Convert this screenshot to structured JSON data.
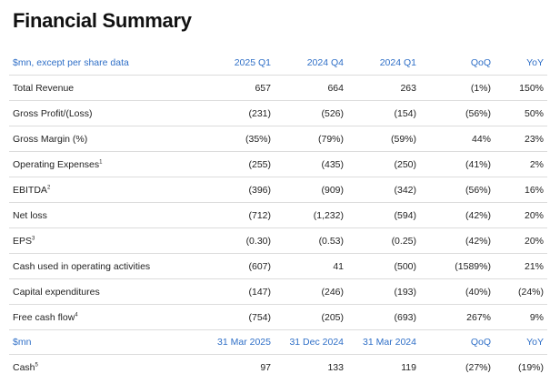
{
  "title": "Financial Summary",
  "table1": {
    "header": [
      "$mn, except per share data",
      "2025 Q1",
      "2024 Q4",
      "2024 Q1",
      "QoQ",
      "YoY"
    ],
    "rows": [
      {
        "label": "Total Revenue",
        "sup": "",
        "cells": [
          "657",
          "664",
          "263",
          "(1%)",
          "150%"
        ]
      },
      {
        "label": "Gross Profit/(Loss)",
        "sup": "",
        "cells": [
          "(231)",
          "(526)",
          "(154)",
          "(56%)",
          "50%"
        ]
      },
      {
        "label": "Gross Margin (%)",
        "sup": "",
        "cells": [
          "(35%)",
          "(79%)",
          "(59%)",
          "44%",
          "23%"
        ]
      },
      {
        "label": "Operating Expenses",
        "sup": "1",
        "cells": [
          "(255)",
          "(435)",
          "(250)",
          "(41%)",
          "2%"
        ]
      },
      {
        "label": "EBITDA",
        "sup": "2",
        "cells": [
          "(396)",
          "(909)",
          "(342)",
          "(56%)",
          "16%"
        ]
      },
      {
        "label": "Net loss",
        "sup": "",
        "cells": [
          "(712)",
          "(1,232)",
          "(594)",
          "(42%)",
          "20%"
        ]
      },
      {
        "label": "EPS",
        "sup": "3",
        "cells": [
          "(0.30)",
          "(0.53)",
          "(0.25)",
          "(42%)",
          "20%"
        ]
      },
      {
        "label": "Cash used in operating activities",
        "sup": "",
        "cells": [
          "(607)",
          "41",
          "(500)",
          "(1589%)",
          "21%"
        ]
      },
      {
        "label": "Capital expenditures",
        "sup": "",
        "cells": [
          "(147)",
          "(246)",
          "(193)",
          "(40%)",
          "(24%)"
        ]
      },
      {
        "label": "Free cash flow",
        "sup": "4",
        "cells": [
          "(754)",
          "(205)",
          "(693)",
          "267%",
          "9%"
        ]
      }
    ]
  },
  "table2": {
    "header": [
      "$mn",
      "31 Mar 2025",
      "31 Dec 2024",
      "31 Mar 2024",
      "QoQ",
      "YoY"
    ],
    "rows": [
      {
        "label": "Cash",
        "sup": "5",
        "cells": [
          "97",
          "133",
          "119",
          "(27%)",
          "(19%)"
        ]
      }
    ]
  },
  "colors": {
    "header_text": "#2f6fc7",
    "row_divider": "#dcdcdc",
    "body_text": "#222222"
  }
}
